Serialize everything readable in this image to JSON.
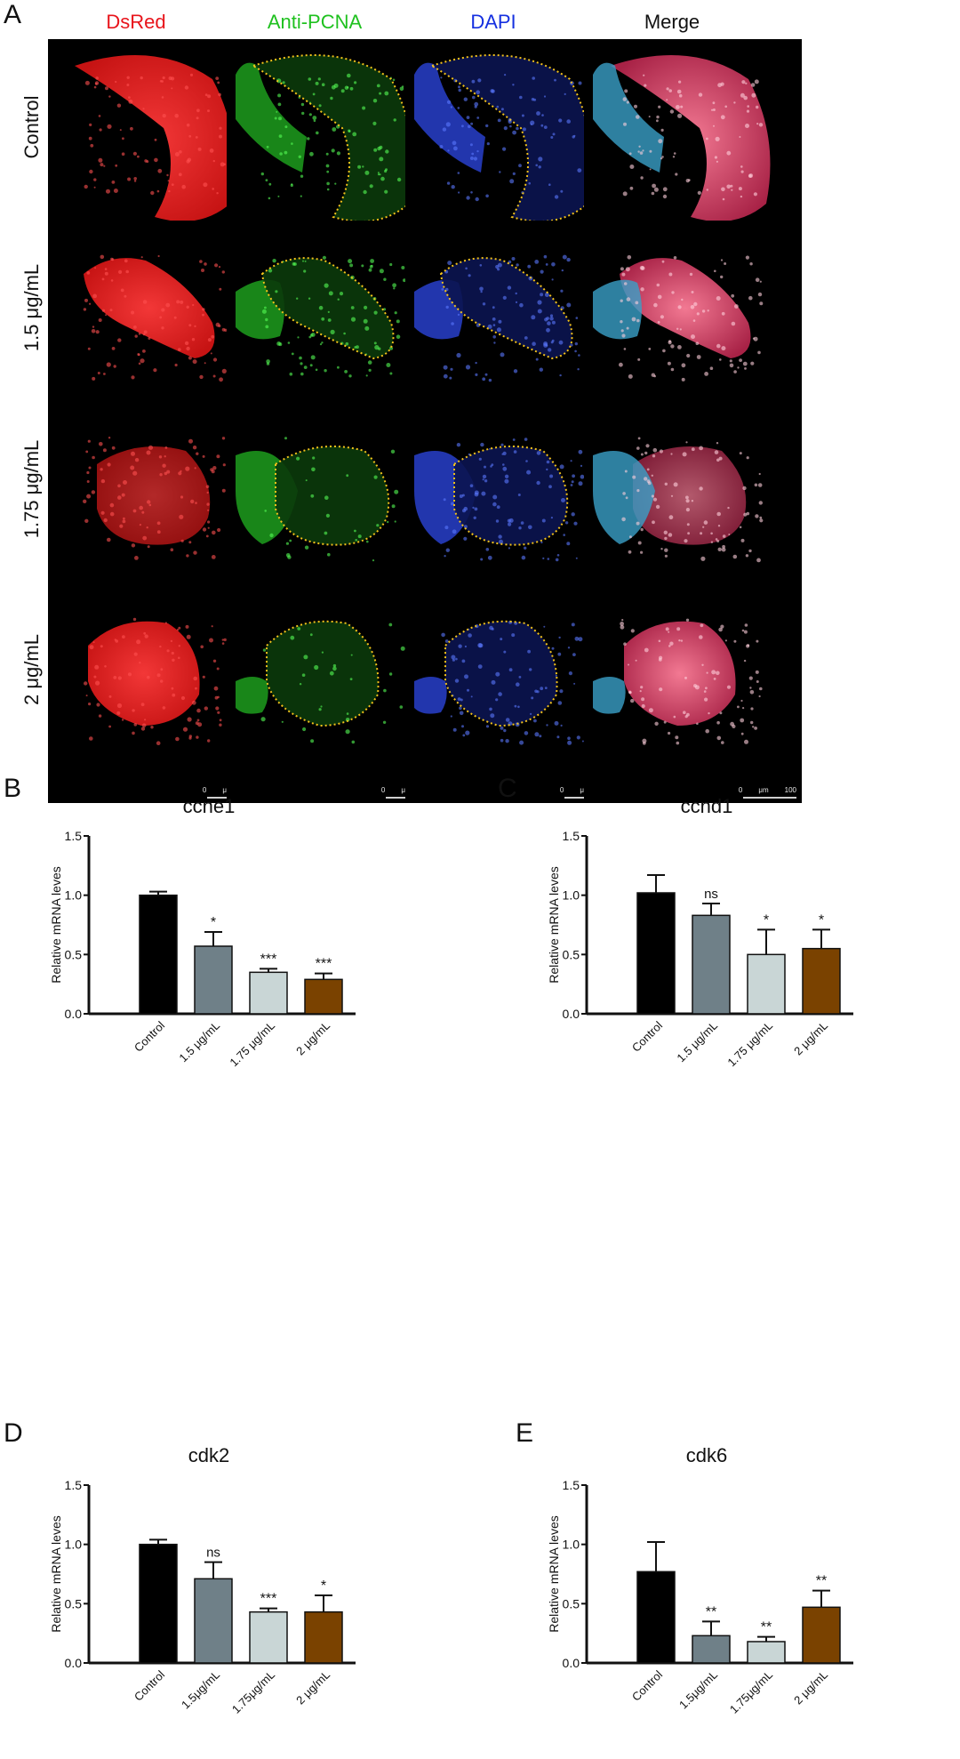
{
  "figure": {
    "panel_a_letter": "A",
    "columns": [
      {
        "label": "DsRed",
        "color": "#e8141b"
      },
      {
        "label": "Anti-PCNA",
        "color": "#1fc11f"
      },
      {
        "label": "DAPI",
        "color": "#1530e0"
      },
      {
        "label": "Merge",
        "color": "#111111"
      }
    ],
    "rows": [
      "Control",
      "1.5 μg/mL",
      "1.75 μg/mL",
      "2 μg/mL"
    ],
    "scale_bar": {
      "zero": "0",
      "unit": "μm",
      "max": "100"
    },
    "outline_color": "#f3c21b"
  },
  "chart_data": [
    {
      "panel": "B",
      "type": "bar",
      "title": "ccne1",
      "ylabel": "Relative mRNA leves",
      "ylim": [
        0,
        1.5
      ],
      "yticks": [
        "0.0",
        "0.5",
        "1.0",
        "1.5"
      ],
      "categories": [
        "Control",
        "1.5 μg/mL",
        "1.75 μg/mL",
        "2 μg/mL"
      ],
      "values": [
        1.0,
        0.57,
        0.35,
        0.29
      ],
      "errors": [
        0.03,
        0.12,
        0.03,
        0.05
      ],
      "significance": [
        "",
        "*",
        "***",
        "***"
      ],
      "colors": [
        "#000000",
        "#6f8088",
        "#c9d6d6",
        "#7a4200"
      ]
    },
    {
      "panel": "C",
      "type": "bar",
      "title": "ccnd1",
      "ylabel": "Relative mRNA leves",
      "ylim": [
        0,
        1.5
      ],
      "yticks": [
        "0.0",
        "0.5",
        "1.0",
        "1.5"
      ],
      "categories": [
        "Control",
        "1.5 μg/mL",
        "1.75 μg/mL",
        "2 μg/mL"
      ],
      "values": [
        1.02,
        0.83,
        0.5,
        0.55
      ],
      "errors": [
        0.15,
        0.1,
        0.21,
        0.16
      ],
      "significance": [
        "",
        "ns",
        "*",
        "*"
      ],
      "colors": [
        "#000000",
        "#6f8088",
        "#c9d6d6",
        "#7a4200"
      ]
    },
    {
      "panel": "D",
      "type": "bar",
      "title": "cdk2",
      "ylabel": "Relative mRNA leves",
      "ylim": [
        0,
        1.5
      ],
      "yticks": [
        "0.0",
        "0.5",
        "1.0",
        "1.5"
      ],
      "categories": [
        "Control",
        "1.5μg/mL",
        "1.75μg/mL",
        "2 μg/mL"
      ],
      "values": [
        1.0,
        0.71,
        0.43,
        0.43
      ],
      "errors": [
        0.04,
        0.14,
        0.03,
        0.14
      ],
      "significance": [
        "",
        "ns",
        "***",
        "*"
      ],
      "colors": [
        "#000000",
        "#6f8088",
        "#c9d6d6",
        "#7a4200"
      ]
    },
    {
      "panel": "E",
      "type": "bar",
      "title": "cdk6",
      "ylabel": "Relative mRNA leves",
      "ylim": [
        0,
        1.5
      ],
      "yticks": [
        "0.0",
        "0.5",
        "1.0",
        "1.5"
      ],
      "categories": [
        "Control",
        "1.5μg/mL",
        "1.75μg/mL",
        "2 μg/mL"
      ],
      "values": [
        0.77,
        0.23,
        0.18,
        0.47
      ],
      "errors": [
        0.25,
        0.12,
        0.04,
        0.14
      ],
      "significance": [
        "",
        "**",
        "**",
        "**"
      ],
      "colors": [
        "#000000",
        "#6f8088",
        "#c9d6d6",
        "#7a4200"
      ]
    }
  ]
}
